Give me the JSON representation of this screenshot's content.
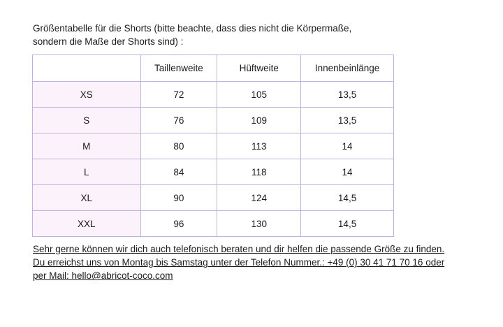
{
  "intro": {
    "line1": "Größentabelle für die Shorts  (bitte beachte, dass dies nicht die Körpermaße,",
    "line2": "sondern die Maße der Shorts sind) :"
  },
  "table": {
    "headers": [
      "",
      "Taillenweite",
      "Hüftweite",
      "Innenbeinlänge"
    ],
    "rows": [
      {
        "size": "XS",
        "waist": "72",
        "hip": "105",
        "inseam": "13,5"
      },
      {
        "size": "S",
        "waist": "76",
        "hip": "109",
        "inseam": "13,5"
      },
      {
        "size": "M",
        "waist": "80",
        "hip": "113",
        "inseam": "14"
      },
      {
        "size": "L",
        "waist": "84",
        "hip": "118",
        "inseam": "14"
      },
      {
        "size": "XL",
        "waist": "90",
        "hip": "124",
        "inseam": "14,5"
      },
      {
        "size": "XXL",
        "waist": "96",
        "hip": "130",
        "inseam": "14,5"
      }
    ]
  },
  "footer": {
    "line1": "Sehr gerne können wir dich auch telefonisch beraten und dir helfen die passende Größe zu finden.",
    "line2": "Du erreichst uns von Montag bis Samstag unter der Telefon Nummer.: +49 (0) 30 41 71 70 16 oder",
    "line3": "per Mail: hello@abricot-coco.com"
  },
  "colors": {
    "border": "#b9b3dd",
    "size_column_bg": "#fcf2fb",
    "text": "#1a1a1a"
  }
}
